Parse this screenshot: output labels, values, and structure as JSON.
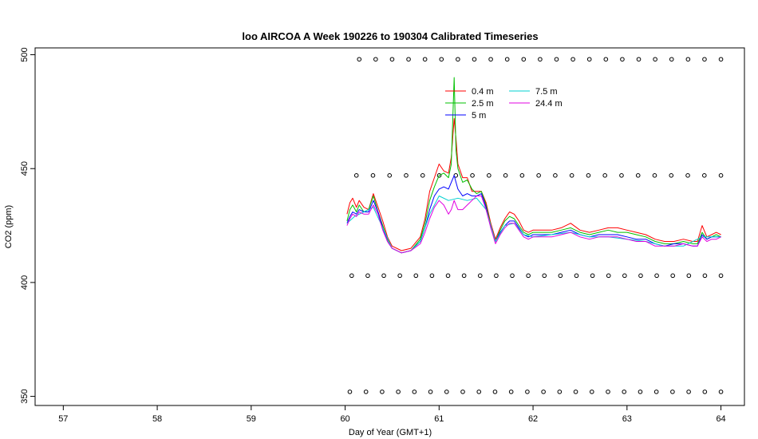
{
  "chart_data": {
    "type": "line",
    "title": "loo AIRCOA A  Week 190226 to 190304  Calibrated Timeseries",
    "xlabel": "Day of Year (GMT+1)",
    "ylabel": "CO2 (ppm)",
    "xlim": [
      56.7,
      64.25
    ],
    "ylim": [
      346,
      503
    ],
    "xticks": [
      57,
      58,
      59,
      60,
      61,
      62,
      63,
      64
    ],
    "yticks": [
      350,
      400,
      450,
      500
    ],
    "legend_position": "top-center",
    "series": [
      {
        "name": "0.4 m",
        "color": "#ff0000",
        "x": [
          60.02,
          60.05,
          60.08,
          60.12,
          60.15,
          60.2,
          60.25,
          60.3,
          60.35,
          60.4,
          60.45,
          60.5,
          60.6,
          60.7,
          60.8,
          60.85,
          60.9,
          60.95,
          61.0,
          61.05,
          61.1,
          61.13,
          61.16,
          61.18,
          61.2,
          61.25,
          61.3,
          61.35,
          61.4,
          61.45,
          61.5,
          61.55,
          61.6,
          61.65,
          61.7,
          61.75,
          61.8,
          61.85,
          61.9,
          61.95,
          62.0,
          62.1,
          62.2,
          62.3,
          62.4,
          62.5,
          62.6,
          62.7,
          62.8,
          62.9,
          63.0,
          63.1,
          63.2,
          63.3,
          63.4,
          63.5,
          63.6,
          63.7,
          63.75,
          63.8,
          63.85,
          63.9,
          63.95,
          64.0
        ],
        "y": [
          430,
          435,
          437,
          433,
          436,
          433,
          432,
          439,
          433,
          427,
          420,
          416,
          414,
          415,
          420,
          428,
          440,
          446,
          452,
          449,
          448,
          455,
          472,
          463,
          452,
          446,
          446,
          440,
          440,
          440,
          435,
          426,
          419,
          424,
          428,
          431,
          430,
          427,
          423,
          422,
          423,
          423,
          423,
          424,
          426,
          423,
          422,
          423,
          424,
          424,
          423,
          422,
          421,
          419,
          418,
          418,
          419,
          418,
          418,
          425,
          420,
          421,
          422,
          421
        ]
      },
      {
        "name": "2.5 m",
        "color": "#00c000",
        "x": [
          60.02,
          60.05,
          60.08,
          60.12,
          60.15,
          60.2,
          60.25,
          60.3,
          60.35,
          60.4,
          60.45,
          60.5,
          60.6,
          60.7,
          60.8,
          60.85,
          60.9,
          60.95,
          61.0,
          61.05,
          61.1,
          61.13,
          61.16,
          61.18,
          61.2,
          61.25,
          61.3,
          61.35,
          61.4,
          61.45,
          61.5,
          61.55,
          61.6,
          61.65,
          61.7,
          61.75,
          61.8,
          61.85,
          61.9,
          61.95,
          62.0,
          62.1,
          62.2,
          62.3,
          62.4,
          62.5,
          62.6,
          62.7,
          62.8,
          62.9,
          63.0,
          63.1,
          63.2,
          63.3,
          63.4,
          63.5,
          63.6,
          63.7,
          63.75,
          63.8,
          63.85,
          63.9,
          63.95,
          64.0
        ],
        "y": [
          427,
          432,
          434,
          431,
          434,
          431,
          432,
          438,
          431,
          425,
          419,
          415,
          413,
          414,
          419,
          426,
          436,
          442,
          447,
          448,
          446,
          452,
          490,
          458,
          450,
          444,
          445,
          441,
          439,
          440,
          434,
          425,
          418,
          423,
          427,
          429,
          428,
          425,
          422,
          421,
          422,
          422,
          422,
          423,
          424,
          422,
          421,
          422,
          423,
          422,
          422,
          421,
          420,
          418,
          417,
          417,
          418,
          417,
          417,
          422,
          419,
          420,
          421,
          420
        ]
      },
      {
        "name": "5 m",
        "color": "#0000ff",
        "x": [
          60.02,
          60.05,
          60.08,
          60.12,
          60.15,
          60.2,
          60.25,
          60.3,
          60.35,
          60.4,
          60.45,
          60.5,
          60.6,
          60.7,
          60.8,
          60.85,
          60.9,
          60.95,
          61.0,
          61.05,
          61.1,
          61.13,
          61.16,
          61.18,
          61.2,
          61.25,
          61.3,
          61.35,
          61.4,
          61.45,
          61.5,
          61.55,
          61.6,
          61.65,
          61.7,
          61.75,
          61.8,
          61.85,
          61.9,
          61.95,
          62.0,
          62.1,
          62.2,
          62.3,
          62.4,
          62.5,
          62.6,
          62.7,
          62.8,
          62.9,
          63.0,
          63.1,
          63.2,
          63.3,
          63.4,
          63.5,
          63.6,
          63.7,
          63.75,
          63.8,
          63.85,
          63.9,
          63.95,
          64.0
        ],
        "y": [
          426,
          429,
          431,
          430,
          432,
          431,
          431,
          436,
          431,
          424,
          418,
          415,
          413,
          414,
          418,
          424,
          432,
          438,
          441,
          442,
          441,
          444,
          447,
          444,
          441,
          438,
          439,
          438,
          438,
          439,
          433,
          424,
          418,
          422,
          425,
          427,
          427,
          424,
          421,
          420,
          421,
          421,
          421,
          422,
          423,
          421,
          420,
          421,
          421,
          421,
          420,
          419,
          419,
          417,
          416,
          417,
          417,
          416,
          416,
          421,
          419,
          420,
          420,
          420
        ]
      },
      {
        "name": "7.5 m",
        "color": "#00d0d0",
        "x": [
          60.02,
          60.1,
          60.2,
          60.3,
          60.4,
          60.5,
          60.6,
          60.7,
          60.8,
          60.9,
          61.0,
          61.1,
          61.2,
          61.3,
          61.4,
          61.5,
          61.6,
          61.7,
          61.8,
          61.9,
          62.0,
          62.2,
          62.4,
          62.6,
          62.8,
          63.0,
          63.2,
          63.4,
          63.6,
          63.8,
          64.0
        ],
        "y": [
          426,
          429,
          431,
          433,
          424,
          415,
          413,
          414,
          418,
          430,
          438,
          436,
          437,
          436,
          437,
          432,
          418,
          425,
          426,
          421,
          420,
          421,
          422,
          420,
          420,
          419,
          418,
          416,
          416,
          420,
          420
        ]
      },
      {
        "name": "24.4 m",
        "color": "#e000e0",
        "x": [
          60.02,
          60.05,
          60.08,
          60.12,
          60.15,
          60.2,
          60.25,
          60.3,
          60.35,
          60.4,
          60.45,
          60.5,
          60.6,
          60.7,
          60.8,
          60.85,
          60.9,
          60.95,
          61.0,
          61.05,
          61.1,
          61.13,
          61.16,
          61.18,
          61.2,
          61.25,
          61.3,
          61.35,
          61.4,
          61.45,
          61.5,
          61.55,
          61.6,
          61.65,
          61.7,
          61.75,
          61.8,
          61.85,
          61.9,
          61.95,
          62.0,
          62.1,
          62.2,
          62.3,
          62.4,
          62.5,
          62.6,
          62.7,
          62.8,
          62.9,
          63.0,
          63.1,
          63.2,
          63.3,
          63.4,
          63.5,
          63.6,
          63.7,
          63.75,
          63.8,
          63.85,
          63.9,
          63.95,
          64.0
        ],
        "y": [
          425,
          428,
          430,
          429,
          431,
          430,
          430,
          434,
          430,
          423,
          418,
          415,
          413,
          414,
          417,
          422,
          428,
          433,
          436,
          434,
          430,
          432,
          436,
          434,
          432,
          432,
          434,
          436,
          438,
          438,
          432,
          424,
          417,
          421,
          424,
          426,
          426,
          423,
          420,
          419,
          420,
          420,
          420,
          421,
          422,
          420,
          419,
          420,
          420,
          420,
          419,
          418,
          418,
          416,
          416,
          416,
          417,
          416,
          416,
          420,
          418,
          419,
          419,
          420
        ]
      }
    ],
    "marker_rows": [
      {
        "y": 498,
        "x_start": 60.15,
        "x_end": 64.0,
        "count": 23
      },
      {
        "y": 447,
        "x_start": 60.12,
        "x_end": 64.0,
        "count": 23
      },
      {
        "y": 403,
        "x_start": 60.07,
        "x_end": 64.0,
        "count": 24
      },
      {
        "y": 352,
        "x_start": 60.05,
        "x_end": 64.0,
        "count": 24
      }
    ]
  }
}
